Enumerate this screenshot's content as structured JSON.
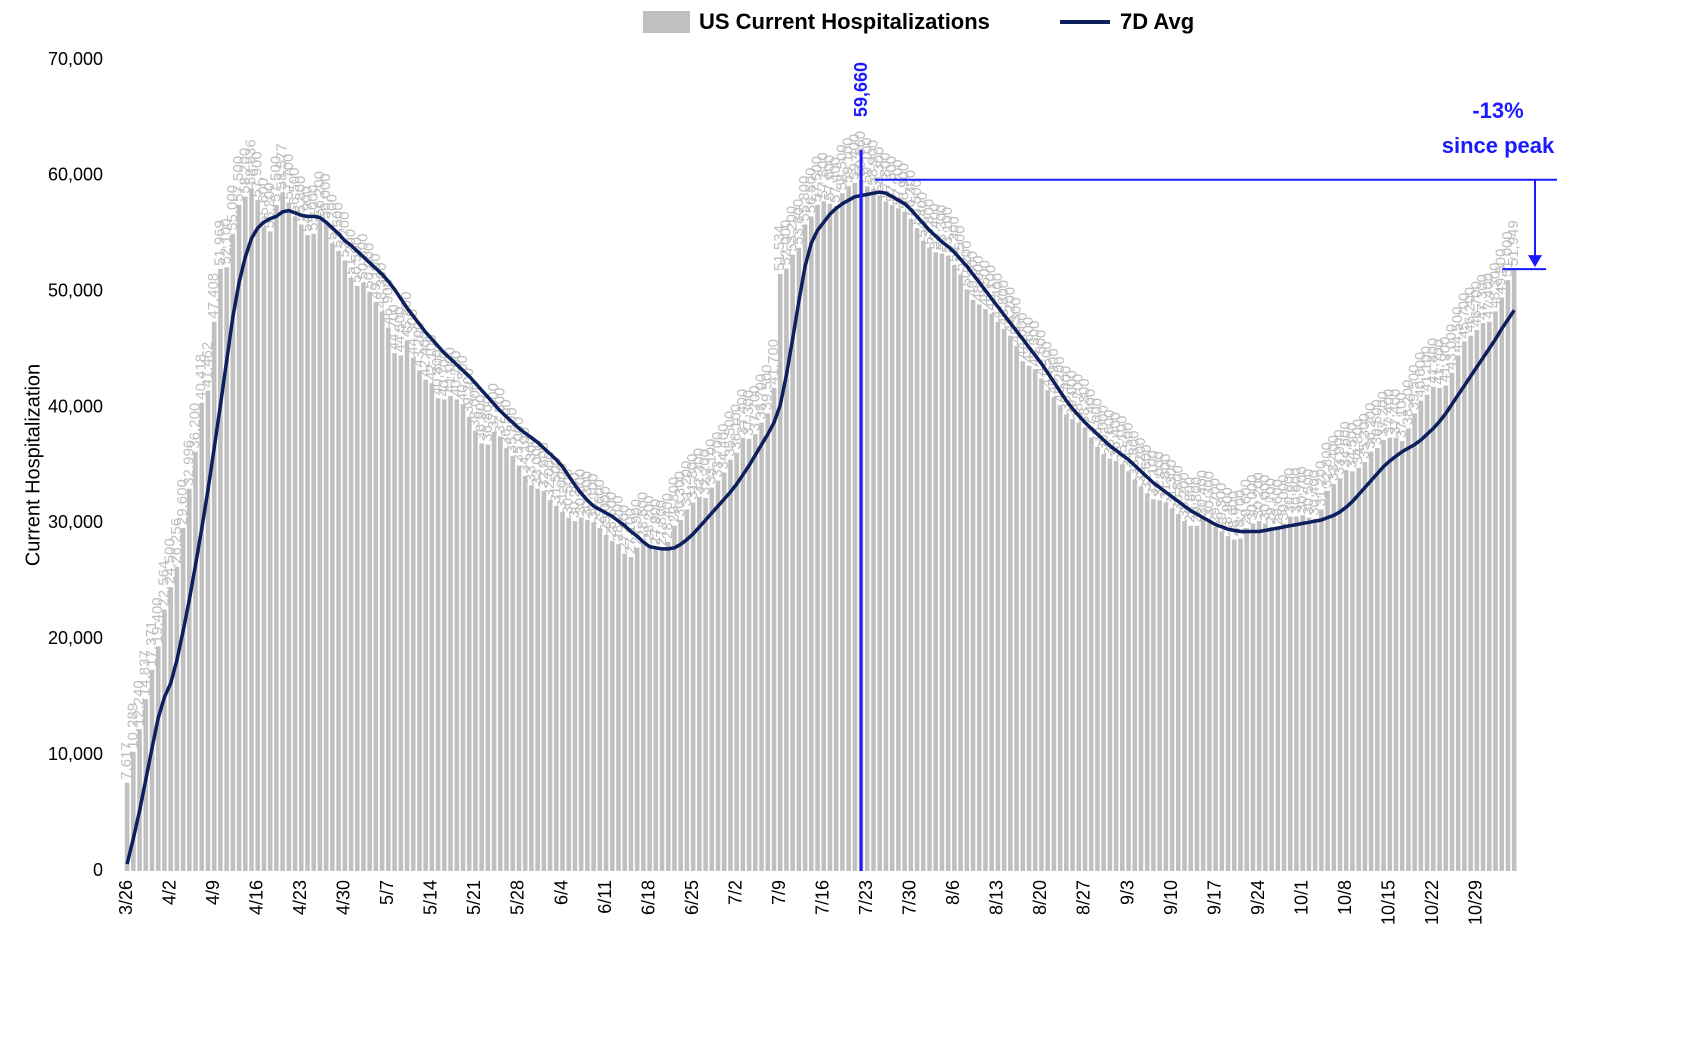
{
  "chart_data": {
    "type": "bar_line",
    "y_label": "Current Hospitalization",
    "ylim": [
      0,
      70000
    ],
    "yticks": [
      0,
      {
        "value": 10000,
        "label": "10,000"
      },
      {
        "value": 20000,
        "label": "20,000"
      },
      {
        "value": 30000,
        "label": "30,000"
      },
      {
        "value": 40000,
        "label": "40,000"
      },
      {
        "value": 50000,
        "label": "50,000"
      },
      {
        "value": 60000,
        "label": "60,000"
      },
      {
        "value": 70000,
        "label": "70,000"
      }
    ],
    "categories": [
      "3/26",
      null,
      null,
      null,
      null,
      null,
      null,
      "4/2",
      null,
      null,
      null,
      null,
      null,
      null,
      "4/9",
      null,
      null,
      null,
      null,
      null,
      null,
      "4/16",
      null,
      null,
      null,
      null,
      null,
      null,
      "4/23",
      null,
      null,
      null,
      null,
      null,
      null,
      "4/30",
      null,
      null,
      null,
      null,
      null,
      null,
      "5/7",
      null,
      null,
      null,
      null,
      null,
      null,
      "5/14",
      null,
      null,
      null,
      null,
      null,
      null,
      "5/21",
      null,
      null,
      null,
      null,
      null,
      null,
      "5/28",
      null,
      null,
      null,
      null,
      null,
      null,
      "6/4",
      null,
      null,
      null,
      null,
      null,
      null,
      "6/11",
      null,
      null,
      null,
      null,
      null,
      null,
      "6/18",
      null,
      null,
      null,
      null,
      null,
      null,
      "6/25",
      null,
      null,
      null,
      null,
      null,
      null,
      "7/2",
      null,
      null,
      null,
      null,
      null,
      null,
      "7/9",
      null,
      null,
      null,
      null,
      null,
      null,
      "7/16",
      null,
      null,
      null,
      null,
      null,
      null,
      "7/23",
      null,
      null,
      null,
      null,
      null,
      null,
      "7/30",
      null,
      null,
      null,
      null,
      null,
      null,
      "8/6",
      null,
      null,
      null,
      null,
      null,
      null,
      "8/13",
      null,
      null,
      null,
      null,
      null,
      null,
      "8/20",
      null,
      null,
      null,
      null,
      null,
      null,
      "8/27",
      null,
      null,
      null,
      null,
      null,
      null,
      "9/3",
      null,
      null,
      null,
      null,
      null,
      null,
      "9/10",
      null,
      null,
      null,
      null,
      null,
      null,
      "9/17",
      null,
      null,
      null,
      null,
      null,
      null,
      "9/24",
      null,
      null,
      null,
      null,
      null,
      null,
      "10/1",
      null,
      null,
      null,
      null,
      null,
      null,
      "10/8",
      null,
      null,
      null,
      null,
      null,
      null,
      "10/15",
      null,
      null,
      null,
      null,
      null,
      null,
      "10/22",
      null,
      null,
      null,
      null,
      null,
      null,
      "10/29",
      null,
      null,
      null,
      null,
      null,
      null
    ],
    "series": [
      {
        "name": "US Current Hospitalizations",
        "color": "#c0c0c0",
        "label_color": "#bdbdbd",
        "values": [
          7617,
          10289,
          12240,
          14837,
          17371,
          19400,
          22564,
          24500,
          26256,
          29600,
          32996,
          36200,
          40418,
          41462,
          47408,
          51969,
          52100,
          55000,
          57500,
          58200,
          58936,
          57900,
          55600,
          55200,
          57500,
          58577,
          57700,
          56500,
          55800,
          54900,
          55000,
          56200,
          56000,
          54200,
          53500,
          52700,
          51200,
          50500,
          50800,
          50000,
          49100,
          48300,
          46900,
          44700,
          44500,
          45800,
          44300,
          43200,
          42400,
          42100,
          40800,
          40700,
          41000,
          40700,
          40300,
          39200,
          38000,
          36900,
          36800,
          37900,
          37500,
          36500,
          35800,
          35000,
          34100,
          33300,
          33000,
          32800,
          32000,
          31500,
          31000,
          30500,
          30200,
          30500,
          30300,
          30100,
          29600,
          29000,
          28500,
          28200,
          27400,
          27100,
          27900,
          28500,
          28200,
          27900,
          27800,
          28400,
          29800,
          30300,
          31200,
          31800,
          32300,
          32200,
          33100,
          33700,
          34400,
          35500,
          36100,
          37400,
          37300,
          37700,
          38700,
          39500,
          41700,
          51534,
          52000,
          53200,
          53800,
          55800,
          56500,
          57500,
          57800,
          57600,
          57400,
          58500,
          59100,
          59400,
          59660,
          59100,
          58900,
          58300,
          57800,
          57500,
          57200,
          56900,
          56300,
          55500,
          54400,
          53800,
          53400,
          53300,
          53100,
          52300,
          51500,
          50200,
          49300,
          48900,
          48500,
          48100,
          47400,
          46800,
          46200,
          45300,
          44000,
          43600,
          43300,
          42500,
          41500,
          40900,
          40200,
          39400,
          39000,
          38700,
          38300,
          37400,
          36600,
          36000,
          35600,
          35400,
          35100,
          34500,
          33800,
          33200,
          32600,
          32100,
          32000,
          31800,
          31300,
          30800,
          30200,
          29800,
          29800,
          30400,
          30300,
          29700,
          29300,
          28900,
          28600,
          28700,
          29600,
          30000,
          30200,
          30000,
          29700,
          29600,
          30000,
          30600,
          30600,
          30700,
          30500,
          30400,
          31200,
          32800,
          33400,
          33900,
          34600,
          34500,
          34800,
          35300,
          36200,
          36500,
          37200,
          37400,
          37400,
          37100,
          38200,
          39500,
          40600,
          41100,
          41800,
          41700,
          41900,
          43000,
          44500,
          45700,
          46200,
          46700,
          47300,
          47400,
          48300,
          49500,
          51000,
          51949
        ],
        "value_labels": [
          "7,617",
          "10,289",
          "12,240",
          "14,837",
          "17,371",
          "19,400",
          "22,564",
          "24,500",
          "26,256",
          "29,600",
          "32,996",
          "36,200",
          "40,418",
          "41,462",
          "47,408",
          "51,969",
          "52,100",
          "55,000",
          "57,500",
          "58,200",
          "58,936",
          "57,900",
          "55,600",
          "55,200",
          "57,500",
          "58,577",
          "57,700",
          "56,500",
          "55,800",
          "54,900",
          "55,000",
          "56,200",
          "56,000",
          "54,200",
          "53,500",
          "52,700",
          "51,200",
          "50,500",
          "50,800",
          "50,000",
          "49,100",
          "48,300",
          "46,900",
          "44,700",
          "44,500",
          "45,800",
          "44,300",
          "43,200",
          "42,400",
          "42,100",
          "40,800",
          "40,700",
          "41,000",
          "40,700",
          "40,300",
          "39,200",
          "38,000",
          "36,900",
          "36,800",
          "37,900",
          "37,500",
          "36,500",
          "35,800",
          "35,000",
          "34,100",
          "33,300",
          "33,000",
          "32,800",
          "32,000",
          "31,500",
          "31,000",
          "30,500",
          "30,200",
          "30,500",
          "30,300",
          "30,100",
          "29,600",
          "29,000",
          "28,500",
          "28,200",
          "27,400",
          "27,100",
          "27,900",
          "28,500",
          "28,200",
          "27,900",
          "27,800",
          "28,400",
          "29,800",
          "30,300",
          "31,200",
          "31,800",
          "32,300",
          "32,200",
          "33,100",
          "33,700",
          "34,400",
          "35,500",
          "36,100",
          "37,400",
          "37,300",
          "37,700",
          "38,700",
          "39,500",
          "41,700",
          "51,534",
          "52,000",
          "53,200",
          "53,800",
          "55,800",
          "56,500",
          "57,500",
          "57,800",
          "57,600",
          "57,400",
          "58,500",
          "59,100",
          "59,400",
          "59,660",
          "59,100",
          "58,900",
          "58,300",
          "57,800",
          "57,500",
          "57,200",
          "56,900",
          "56,300",
          "55,500",
          "54,400",
          "53,800",
          "53,400",
          "53,300",
          "53,100",
          "52,300",
          "51,500",
          "50,200",
          "49,300",
          "48,900",
          "48,500",
          "48,100",
          "47,400",
          "46,800",
          "46,200",
          "45,300",
          "44,000",
          "43,600",
          "43,300",
          "42,500",
          "41,500",
          "40,900",
          "40,200",
          "39,400",
          "39,000",
          "38,700",
          "38,300",
          "37,400",
          "36,600",
          "36,000",
          "35,600",
          "35,400",
          "35,100",
          "34,500",
          "33,800",
          "33,200",
          "32,600",
          "32,100",
          "32,000",
          "31,800",
          "31,300",
          "30,800",
          "30,200",
          "29,800",
          "29,800",
          "30,400",
          "30,300",
          "29,700",
          "29,300",
          "28,900",
          "28,600",
          "28,700",
          "29,600",
          "30,000",
          "30,200",
          "30,000",
          "29,700",
          "29,600",
          "30,000",
          "30,600",
          "30,600",
          "30,700",
          "30,500",
          "30,400",
          "31,200",
          "32,800",
          "33,400",
          "33,900",
          "34,600",
          "34,500",
          "34,800",
          "35,300",
          "36,200",
          "36,500",
          "37,200",
          "37,400",
          "37,400",
          "37,100",
          "38,200",
          "39,500",
          "40,600",
          "41,100",
          "41,800",
          "41,700",
          "41,900",
          "43,000",
          "44,500",
          "45,700",
          "46,200",
          "46,700",
          "47,300",
          "47,400",
          "48,300",
          "49,500",
          "51,000",
          "51,949"
        ]
      },
      {
        "name": "7D Avg",
        "color": "#0d1f5c",
        "values": [
          600,
          2800,
          5200,
          7900,
          10600,
          13200,
          15000,
          16200,
          18200,
          20700,
          23400,
          26400,
          29600,
          32900,
          36500,
          40200,
          44000,
          47800,
          50800,
          53000,
          54600,
          55500,
          56000,
          56300,
          56500,
          56900,
          57000,
          56800,
          56600,
          56500,
          56500,
          56400,
          56000,
          55500,
          55000,
          54400,
          54000,
          53500,
          53000,
          52500,
          52000,
          51500,
          50900,
          50200,
          49400,
          48600,
          47900,
          47200,
          46500,
          45900,
          45300,
          44700,
          44200,
          43700,
          43200,
          42700,
          42100,
          41500,
          40900,
          40300,
          39700,
          39200,
          38700,
          38200,
          37800,
          37400,
          37000,
          36500,
          36000,
          35500,
          34900,
          34100,
          33300,
          32600,
          32000,
          31500,
          31200,
          30900,
          30600,
          30200,
          29800,
          29300,
          28900,
          28400,
          28000,
          27900,
          27800,
          27800,
          27900,
          28200,
          28600,
          29100,
          29700,
          30300,
          30900,
          31500,
          32100,
          32700,
          33400,
          34200,
          35000,
          35900,
          36800,
          37700,
          38700,
          40200,
          42800,
          45900,
          49200,
          52200,
          54200,
          55300,
          56000,
          56700,
          57200,
          57600,
          57900,
          58200,
          58300,
          58400,
          58500,
          58600,
          58500,
          58200,
          57900,
          57600,
          57100,
          56500,
          55900,
          55300,
          54800,
          54300,
          53900,
          53400,
          52800,
          52200,
          51500,
          50800,
          50100,
          49400,
          48700,
          48000,
          47300,
          46600,
          45900,
          45200,
          44500,
          43800,
          43000,
          42200,
          41400,
          40600,
          39900,
          39300,
          38700,
          38200,
          37700,
          37200,
          36700,
          36300,
          35900,
          35500,
          35000,
          34500,
          34000,
          33500,
          33100,
          32700,
          32300,
          31900,
          31500,
          31100,
          30800,
          30500,
          30200,
          29900,
          29700,
          29500,
          29400,
          29300,
          29300,
          29300,
          29300,
          29400,
          29500,
          29600,
          29700,
          29800,
          29900,
          30000,
          30100,
          30200,
          30300,
          30500,
          30700,
          31000,
          31400,
          31900,
          32500,
          33100,
          33700,
          34300,
          34900,
          35400,
          35800,
          36200,
          36500,
          36800,
          37200,
          37700,
          38200,
          38800,
          39500,
          40300,
          41100,
          41900,
          42700,
          43500,
          44300,
          45100,
          45900,
          46800,
          47600,
          48400
        ]
      }
    ],
    "annotations": {
      "peak": "59,660",
      "change": "-13%",
      "change_note": "since peak",
      "color": "#1a1aff"
    }
  }
}
